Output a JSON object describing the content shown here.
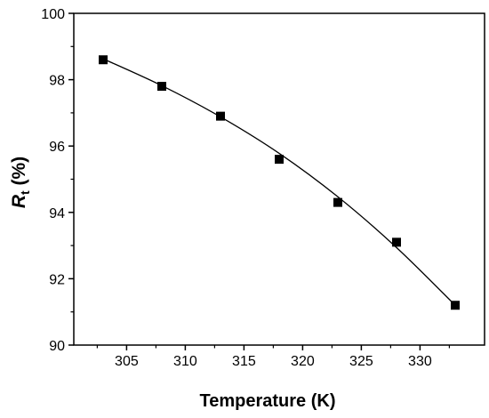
{
  "chart_data": {
    "type": "scatter",
    "title": "",
    "xlabel": "Temperature (K)",
    "ylabel_main": "R",
    "ylabel_sub": "t",
    "ylabel_rest": " (%)",
    "xlim": [
      300.5,
      335.5
    ],
    "ylim": [
      90,
      100
    ],
    "xticks": [
      305,
      310,
      315,
      320,
      325,
      330
    ],
    "yticks": [
      90,
      92,
      94,
      96,
      98,
      100
    ],
    "grid": false,
    "legend": "none",
    "series": [
      {
        "marker": "square",
        "color": "#000000",
        "x": [
          303,
          308,
          313,
          318,
          323,
          328,
          333
        ],
        "y": [
          98.6,
          97.8,
          96.9,
          95.6,
          94.3,
          93.1,
          91.2
        ]
      }
    ],
    "fit_line": {
      "color": "#000000",
      "x": [
        303,
        308,
        313,
        318,
        323,
        328,
        333
      ],
      "y": [
        98.63,
        97.82,
        96.88,
        95.78,
        94.47,
        92.94,
        91.2
      ]
    }
  }
}
